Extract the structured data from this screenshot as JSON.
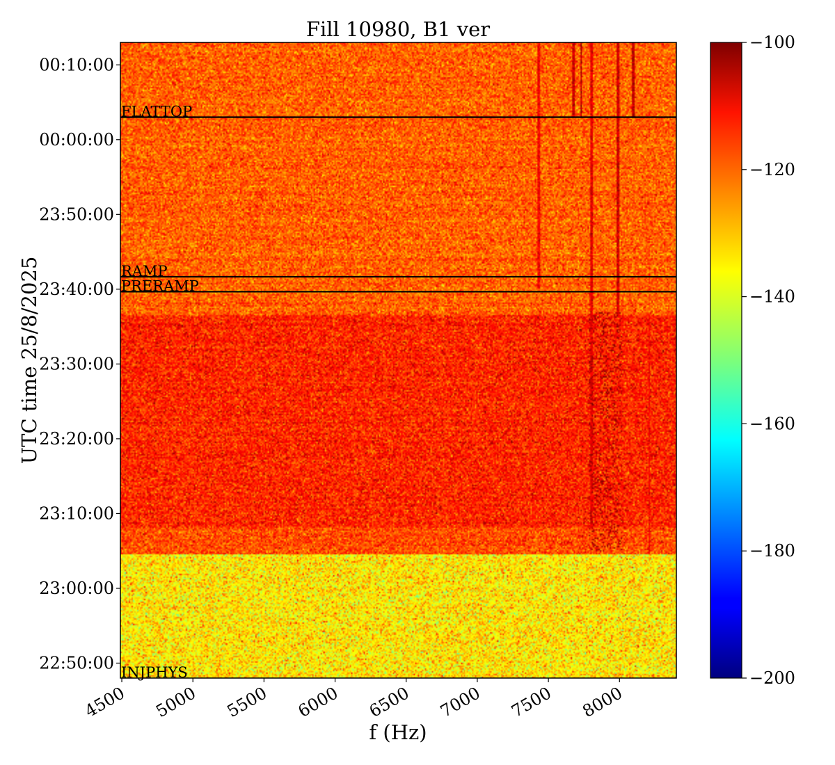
{
  "chart_data": {
    "type": "heatmap",
    "title": "Fill 10980, B1 ver",
    "xlabel": "f (Hz)",
    "ylabel": "UTC time 25/8/2025",
    "xlim": [
      4490,
      8400
    ],
    "ylim": [
      "22:48:00",
      "00:13:00"
    ],
    "x_ticks": [
      "4500",
      "5000",
      "5500",
      "6000",
      "6500",
      "7000",
      "7500",
      "8000"
    ],
    "y_ticks": [
      "22:50:00",
      "23:00:00",
      "23:10:00",
      "23:20:00",
      "23:30:00",
      "23:40:00",
      "23:50:00",
      "00:00:00",
      "00:10:00"
    ],
    "colorbar": {
      "colormap": "jet",
      "range": [
        -200,
        -100
      ],
      "ticks": [
        "-200",
        "-180",
        "-160",
        "-140",
        "-120",
        "-100"
      ]
    },
    "phases": [
      {
        "label": "INJPHYS",
        "time": "22:48:00"
      },
      {
        "label": "PRERAMP",
        "time": "23:39:40"
      },
      {
        "label": "RAMP",
        "time": "23:41:40"
      },
      {
        "label": "FLATTOP",
        "time": "00:03:00"
      }
    ],
    "regions": [
      {
        "from": "22:48:00",
        "to": "23:04:30",
        "mean_level": -136,
        "spread": 6
      },
      {
        "from": "23:04:30",
        "to": "23:08:00",
        "mean_level": -120,
        "spread": 5
      },
      {
        "from": "23:08:00",
        "to": "23:36:30",
        "mean_level": -116,
        "spread": 5
      },
      {
        "from": "23:36:30",
        "to": "00:13:00",
        "mean_level": -122,
        "spread": 5
      }
    ],
    "spectral_lines": [
      {
        "f": 7430,
        "from": "23:40:00",
        "to": "00:13:00",
        "level": -112
      },
      {
        "f": 7680,
        "from": "00:03:00",
        "to": "00:13:00",
        "level": -108
      },
      {
        "f": 7730,
        "from": "00:03:00",
        "to": "00:13:00",
        "level": -106
      },
      {
        "f": 7800,
        "from": "23:08:00",
        "to": "00:13:00",
        "level": -110
      },
      {
        "f": 7990,
        "from": "23:36:30",
        "to": "00:13:00",
        "level": -108
      },
      {
        "f": 8100,
        "from": "00:03:00",
        "to": "00:13:00",
        "level": -106
      },
      {
        "f": 8210,
        "from": "23:04:30",
        "to": "23:36:30",
        "level": -112
      }
    ]
  }
}
